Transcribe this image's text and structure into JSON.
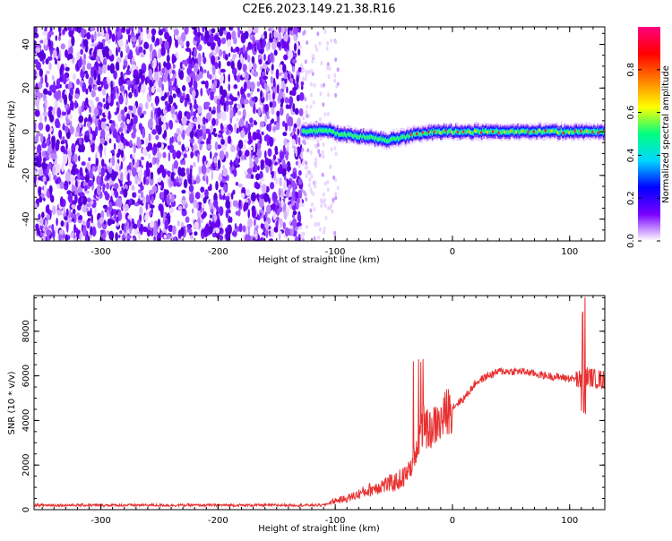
{
  "title": "C2E6.2023.149.21.38.R16",
  "chart_data": [
    {
      "type": "heatmap",
      "xlabel": "Height of straight line (km)",
      "ylabel": "Frequency (Hz)",
      "xlim": [
        -357,
        130
      ],
      "ylim": [
        -50,
        48
      ],
      "xticks": [
        -300,
        -200,
        -100,
        0,
        100
      ],
      "yticks": [
        -40,
        -20,
        0,
        20,
        40
      ],
      "noise_region_end_km": -128,
      "signal_start_km": -128,
      "signal_trace_freq_hz": [
        [
          -128,
          0
        ],
        [
          -110,
          1
        ],
        [
          -95,
          -1
        ],
        [
          -80,
          -2
        ],
        [
          -65,
          -3
        ],
        [
          -55,
          -4
        ],
        [
          -45,
          -3
        ],
        [
          -30,
          -1
        ],
        [
          -15,
          0
        ],
        [
          0,
          0
        ],
        [
          30,
          0
        ],
        [
          60,
          0
        ],
        [
          90,
          0
        ],
        [
          110,
          0
        ],
        [
          130,
          0
        ]
      ],
      "colorbar": {
        "label": "Normalized spectral amplitude",
        "range": [
          0,
          1
        ],
        "ticks": [
          "0.0",
          "0.2",
          "0.4",
          "0.6",
          "0.8"
        ],
        "colors": [
          "#ffffff",
          "#7a00ff",
          "#0000ff",
          "#00d8ff",
          "#00ff80",
          "#ffff00",
          "#ff8000",
          "#ff0000",
          "#ff0080"
        ]
      }
    },
    {
      "type": "line",
      "xlabel": "Height of straight line (km)",
      "ylabel": "SNR (10 * v/v)",
      "xlim": [
        -357,
        130
      ],
      "ylim": [
        0,
        9600
      ],
      "xticks": [
        -300,
        -200,
        -100,
        0,
        100
      ],
      "yticks": [
        0,
        2000,
        4000,
        6000,
        8000
      ],
      "color": "#e83030",
      "series": [
        {
          "points": [
            [
              -357,
              200
            ],
            [
              -300,
              200
            ],
            [
              -200,
              200
            ],
            [
              -130,
              200
            ],
            [
              -110,
              200
            ],
            [
              -100,
              400
            ],
            [
              -90,
              500
            ],
            [
              -80,
              700
            ],
            [
              -70,
              900
            ],
            [
              -60,
              1100
            ],
            [
              -50,
              1200
            ],
            [
              -40,
              1500
            ],
            [
              -35,
              2000
            ],
            [
              -30,
              3000
            ],
            [
              -25,
              3800
            ],
            [
              -20,
              3500
            ],
            [
              -15,
              3800
            ],
            [
              -10,
              3900
            ],
            [
              -5,
              4400
            ],
            [
              0,
              4600
            ],
            [
              10,
              5000
            ],
            [
              20,
              5700
            ],
            [
              30,
              6000
            ],
            [
              40,
              6200
            ],
            [
              50,
              6200
            ],
            [
              60,
              6200
            ],
            [
              70,
              6100
            ],
            [
              80,
              6000
            ],
            [
              90,
              5950
            ],
            [
              100,
              5900
            ],
            [
              110,
              5800
            ],
            [
              115,
              6000
            ],
            [
              120,
              5900
            ],
            [
              130,
              5800
            ]
          ]
        }
      ]
    }
  ]
}
